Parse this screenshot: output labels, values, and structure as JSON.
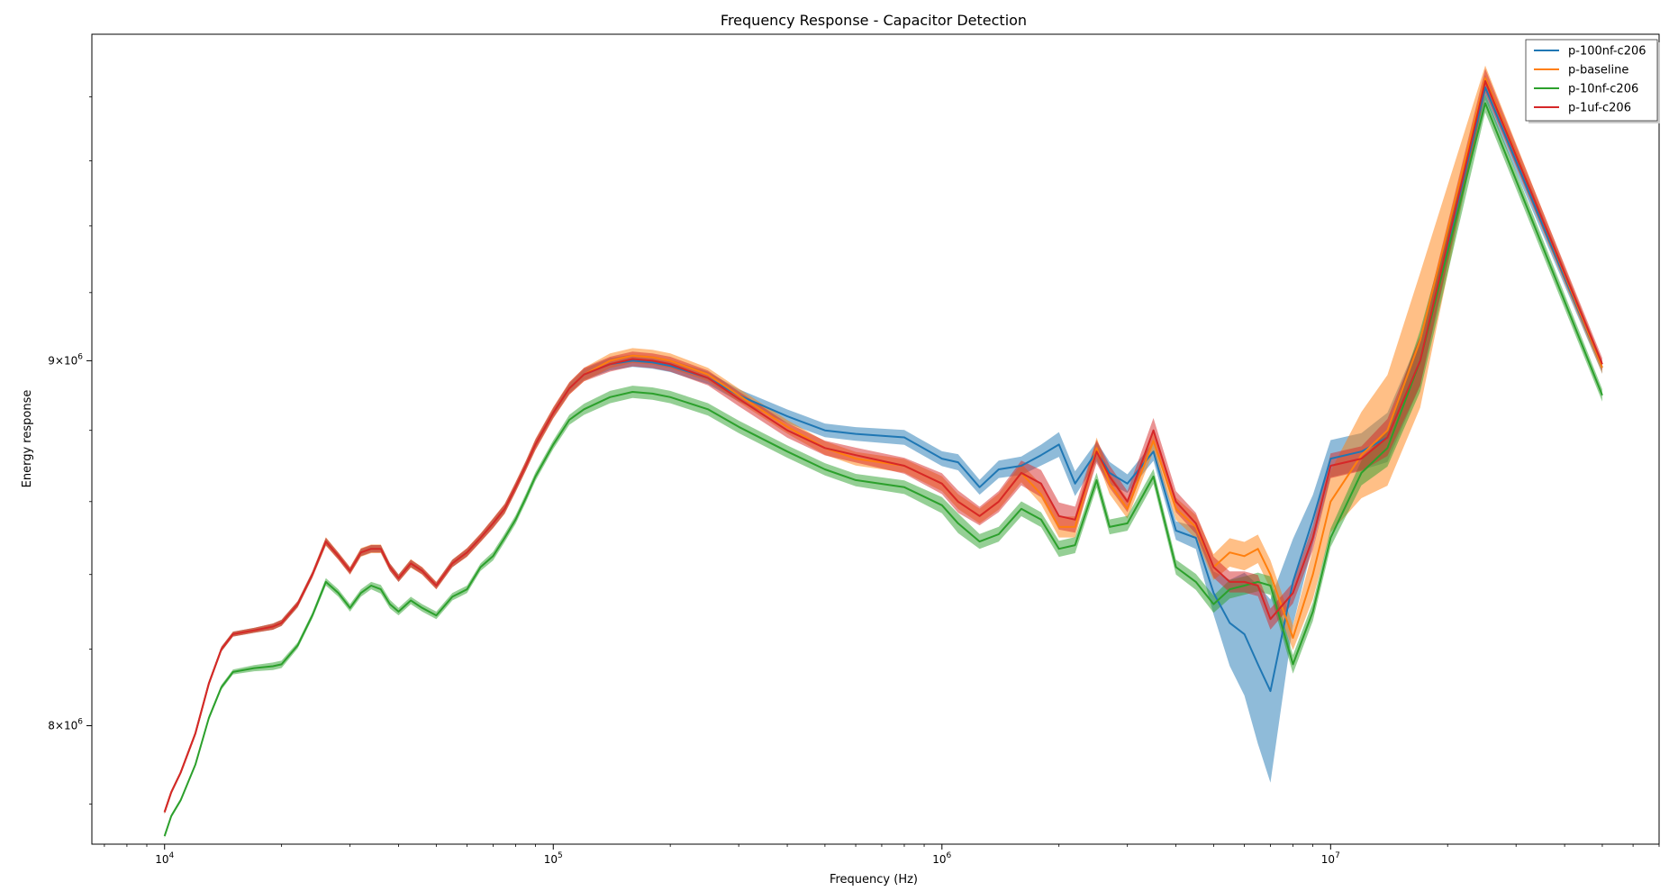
{
  "chart_data": {
    "type": "line",
    "title": "Frequency Response - Capacitor Detection",
    "xlabel": "Frequency (Hz)",
    "ylabel": "Energy response",
    "xscale": "log",
    "yscale": "log",
    "xlim": [
      6500,
      70000000
    ],
    "ylim": [
      7700000,
      10000000
    ],
    "x_ticks": [
      {
        "value": 10000,
        "base": "10",
        "exp": "4"
      },
      {
        "value": 100000,
        "base": "10",
        "exp": "5"
      },
      {
        "value": 1000000,
        "base": "10",
        "exp": "6"
      },
      {
        "value": 10000000,
        "base": "10",
        "exp": "7"
      }
    ],
    "y_ticks": [
      {
        "value": 8000000,
        "mant": "8",
        "base": "10",
        "exp": "6"
      },
      {
        "value": 9000000,
        "mant": "9",
        "base": "10",
        "exp": "6"
      }
    ],
    "legend_position": "top-right",
    "x": [
      10000,
      10400,
      11000,
      12000,
      13000,
      14000,
      15000,
      17000,
      19000,
      20000,
      22000,
      24000,
      26000,
      28000,
      30000,
      32000,
      34000,
      36000,
      38000,
      40000,
      43000,
      46000,
      50000,
      55000,
      60000,
      65000,
      70000,
      75000,
      80000,
      85000,
      90000,
      100000,
      110000,
      120000,
      140000,
      160000,
      180000,
      200000,
      250000,
      300000,
      400000,
      500000,
      600000,
      800000,
      1000000,
      1100000,
      1250000,
      1400000,
      1600000,
      1800000,
      2000000,
      2200000,
      2500000,
      2700000,
      3000000,
      3500000,
      4000000,
      4500000,
      5000000,
      5500000,
      6000000,
      6500000,
      7000000,
      8000000,
      9000000,
      10000000,
      12000000,
      14000000,
      17000000,
      25000000,
      50000000
    ],
    "series": [
      {
        "name": "p-100nf-c206",
        "color": "#1f77b4",
        "values": [
          7780000,
          7830000,
          7880000,
          7980000,
          8110000,
          8200000,
          8240000,
          8250000,
          8260000,
          8270000,
          8320000,
          8400000,
          8490000,
          8450000,
          8410000,
          8460000,
          8470000,
          8470000,
          8420000,
          8390000,
          8430000,
          8410000,
          8370000,
          8430000,
          8460000,
          8500000,
          8540000,
          8580000,
          8640000,
          8700000,
          8760000,
          8850000,
          8920000,
          8960000,
          8990000,
          9000000,
          8995000,
          8985000,
          8950000,
          8900000,
          8840000,
          8800000,
          8790000,
          8780000,
          8720000,
          8710000,
          8640000,
          8690000,
          8700000,
          8730000,
          8760000,
          8650000,
          8740000,
          8680000,
          8650000,
          8740000,
          8520000,
          8500000,
          8350000,
          8270000,
          8240000,
          8160000,
          8090000,
          8380000,
          8550000,
          8720000,
          8740000,
          8780000,
          9000000,
          9830000,
          8980000
        ]
      },
      {
        "name": "p-baseline",
        "color": "#ff7f0e",
        "values": [
          7780000,
          7830000,
          7880000,
          7980000,
          8110000,
          8200000,
          8240000,
          8250000,
          8260000,
          8270000,
          8320000,
          8400000,
          8490000,
          8450000,
          8410000,
          8460000,
          8470000,
          8470000,
          8420000,
          8390000,
          8430000,
          8410000,
          8370000,
          8430000,
          8460000,
          8500000,
          8540000,
          8580000,
          8640000,
          8700000,
          8760000,
          8850000,
          8920000,
          8960000,
          9000000,
          9015000,
          9010000,
          9000000,
          8960000,
          8900000,
          8810000,
          8750000,
          8720000,
          8700000,
          8650000,
          8600000,
          8560000,
          8600000,
          8680000,
          8620000,
          8530000,
          8530000,
          8750000,
          8650000,
          8580000,
          8770000,
          8580000,
          8530000,
          8420000,
          8460000,
          8450000,
          8470000,
          8400000,
          8230000,
          8400000,
          8600000,
          8730000,
          8800000,
          9060000,
          9860000,
          8980000
        ]
      },
      {
        "name": "p-10nf-c206",
        "color": "#2ca02c",
        "values": [
          7720000,
          7770000,
          7810000,
          7900000,
          8020000,
          8100000,
          8140000,
          8150000,
          8155000,
          8160000,
          8210000,
          8290000,
          8380000,
          8350000,
          8310000,
          8350000,
          8370000,
          8360000,
          8320000,
          8300000,
          8330000,
          8310000,
          8290000,
          8340000,
          8360000,
          8420000,
          8450000,
          8500000,
          8550000,
          8610000,
          8670000,
          8760000,
          8830000,
          8860000,
          8895000,
          8910000,
          8905000,
          8895000,
          8860000,
          8810000,
          8740000,
          8690000,
          8660000,
          8640000,
          8590000,
          8540000,
          8490000,
          8510000,
          8580000,
          8550000,
          8470000,
          8480000,
          8660000,
          8530000,
          8540000,
          8670000,
          8420000,
          8380000,
          8320000,
          8360000,
          8370000,
          8380000,
          8370000,
          8160000,
          8300000,
          8500000,
          8680000,
          8750000,
          9000000,
          9780000,
          8900000
        ]
      },
      {
        "name": "p-1uf-c206",
        "color": "#d62728",
        "values": [
          7780000,
          7830000,
          7880000,
          7980000,
          8110000,
          8200000,
          8240000,
          8250000,
          8260000,
          8270000,
          8320000,
          8400000,
          8490000,
          8450000,
          8410000,
          8460000,
          8470000,
          8470000,
          8420000,
          8390000,
          8430000,
          8410000,
          8370000,
          8430000,
          8460000,
          8500000,
          8540000,
          8580000,
          8640000,
          8700000,
          8760000,
          8850000,
          8920000,
          8960000,
          8990000,
          9005000,
          9000000,
          8990000,
          8950000,
          8890000,
          8800000,
          8750000,
          8730000,
          8700000,
          8650000,
          8600000,
          8560000,
          8600000,
          8680000,
          8650000,
          8560000,
          8550000,
          8740000,
          8670000,
          8600000,
          8800000,
          8600000,
          8540000,
          8420000,
          8380000,
          8380000,
          8370000,
          8280000,
          8350000,
          8500000,
          8700000,
          8720000,
          8780000,
          9000000,
          9850000,
          8990000
        ]
      }
    ],
    "band_halfwidth": [
      [
        0.06,
        0.06,
        0.06,
        0.06,
        0.08,
        0.08,
        0.08,
        0.08,
        0.1,
        0.1,
        0.1,
        0.1,
        0.12,
        0.1,
        0.1,
        0.12,
        0.12,
        0.12,
        0.12,
        0.12,
        0.12,
        0.1,
        0.1,
        0.12,
        0.12,
        0.12,
        0.14,
        0.14,
        0.14,
        0.14,
        0.14,
        0.14,
        0.16,
        0.18,
        0.2,
        0.2,
        0.2,
        0.2,
        0.2,
        0.2,
        0.22,
        0.22,
        0.22,
        0.24,
        0.24,
        0.26,
        0.24,
        0.28,
        0.3,
        0.34,
        0.4,
        0.4,
        0.32,
        0.36,
        0.3,
        0.3,
        0.3,
        0.36,
        0.7,
        1.4,
        2.0,
        2.6,
        3.0,
        1.4,
        0.8,
        0.6,
        0.6,
        0.8,
        0.8,
        0.4,
        0.2
      ],
      [
        0.06,
        0.06,
        0.06,
        0.06,
        0.08,
        0.08,
        0.08,
        0.08,
        0.1,
        0.1,
        0.1,
        0.1,
        0.14,
        0.12,
        0.12,
        0.14,
        0.14,
        0.14,
        0.12,
        0.12,
        0.14,
        0.12,
        0.12,
        0.12,
        0.14,
        0.14,
        0.16,
        0.16,
        0.16,
        0.16,
        0.18,
        0.18,
        0.2,
        0.22,
        0.24,
        0.24,
        0.24,
        0.24,
        0.22,
        0.22,
        0.22,
        0.22,
        0.22,
        0.22,
        0.24,
        0.24,
        0.24,
        0.26,
        0.3,
        0.32,
        0.34,
        0.34,
        0.34,
        0.34,
        0.32,
        0.34,
        0.36,
        0.38,
        0.42,
        0.46,
        0.46,
        0.46,
        0.46,
        0.4,
        0.8,
        1.0,
        1.4,
        1.8,
        2.2,
        0.4,
        0.2
      ],
      [
        0.06,
        0.06,
        0.06,
        0.06,
        0.08,
        0.08,
        0.08,
        0.1,
        0.12,
        0.12,
        0.1,
        0.1,
        0.12,
        0.12,
        0.12,
        0.12,
        0.12,
        0.14,
        0.14,
        0.12,
        0.12,
        0.12,
        0.12,
        0.12,
        0.12,
        0.12,
        0.14,
        0.14,
        0.14,
        0.14,
        0.14,
        0.14,
        0.16,
        0.18,
        0.2,
        0.2,
        0.2,
        0.2,
        0.2,
        0.2,
        0.2,
        0.2,
        0.2,
        0.22,
        0.26,
        0.32,
        0.24,
        0.24,
        0.24,
        0.24,
        0.26,
        0.26,
        0.24,
        0.24,
        0.24,
        0.24,
        0.24,
        0.26,
        0.28,
        0.3,
        0.3,
        0.3,
        0.3,
        0.3,
        0.3,
        0.3,
        0.4,
        0.6,
        1.0,
        0.3,
        0.2
      ],
      [
        0.06,
        0.06,
        0.06,
        0.06,
        0.08,
        0.08,
        0.08,
        0.08,
        0.1,
        0.1,
        0.1,
        0.1,
        0.12,
        0.12,
        0.12,
        0.12,
        0.12,
        0.12,
        0.12,
        0.12,
        0.12,
        0.12,
        0.12,
        0.12,
        0.14,
        0.14,
        0.16,
        0.16,
        0.16,
        0.16,
        0.18,
        0.18,
        0.2,
        0.22,
        0.24,
        0.24,
        0.24,
        0.24,
        0.24,
        0.24,
        0.24,
        0.24,
        0.24,
        0.26,
        0.34,
        0.36,
        0.3,
        0.34,
        0.4,
        0.44,
        0.44,
        0.42,
        0.38,
        0.36,
        0.34,
        0.4,
        0.34,
        0.34,
        0.34,
        0.34,
        0.34,
        0.34,
        0.34,
        0.34,
        0.4,
        0.4,
        0.4,
        0.6,
        0.8,
        0.4,
        0.2
      ]
    ]
  }
}
